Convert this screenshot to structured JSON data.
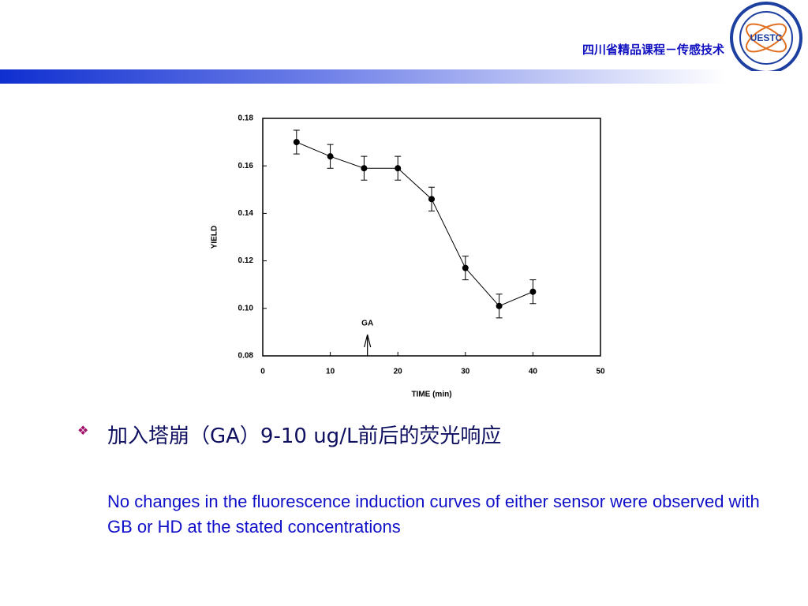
{
  "header": {
    "title": "四川省精品课程－传感技术",
    "logo_text": "UESTC"
  },
  "chart_data": {
    "type": "line",
    "x": [
      5,
      10,
      15,
      20,
      25,
      30,
      35,
      40
    ],
    "values": [
      0.17,
      0.164,
      0.159,
      0.159,
      0.146,
      0.117,
      0.101,
      0.107
    ],
    "errors": [
      0.005,
      0.005,
      0.005,
      0.005,
      0.005,
      0.005,
      0.005,
      0.005
    ],
    "color": "#000000",
    "xlabel": "TIME (min)",
    "ylabel": "YIELD",
    "xlim": [
      0,
      50
    ],
    "xticks": [
      0,
      10,
      20,
      30,
      40,
      50
    ],
    "ylim": [
      0.08,
      0.18
    ],
    "yticks": [
      0.08,
      {
        "value": 0.1,
        "label": "0.10"
      },
      0.12,
      0.14,
      0.16,
      0.18
    ],
    "annotations": [
      {
        "text": "GA",
        "x": 15.5
      }
    ]
  },
  "bullet": {
    "heading": "加入塔崩（GA）9-10 ug/L前后的荧光响应",
    "body": "No changes in the fluorescence induction curves of either sensor were observed with GB or HD at the stated concentrations"
  }
}
